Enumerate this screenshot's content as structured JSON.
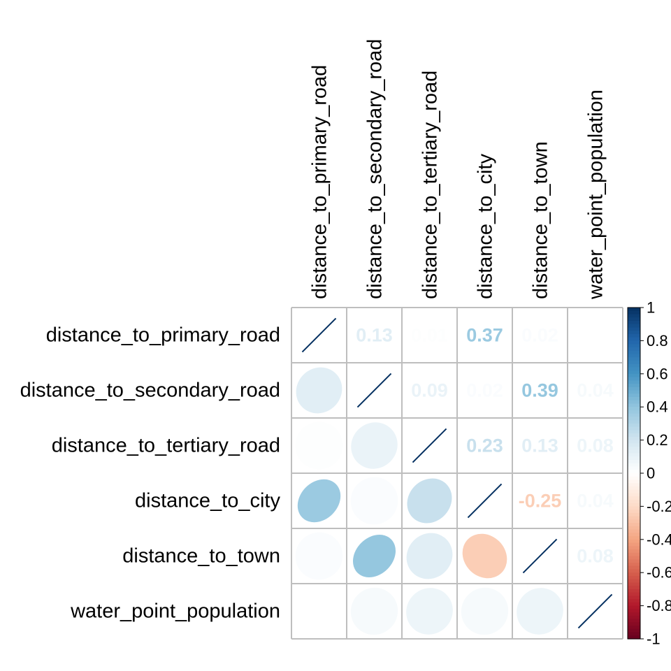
{
  "chart_data": {
    "type": "heatmap",
    "title": "",
    "variables": [
      "distance_to_primary_road",
      "distance_to_secondary_road",
      "distance_to_tertiary_road",
      "distance_to_city",
      "distance_to_town",
      "water_point_population"
    ],
    "correlation_matrix": [
      [
        1.0,
        0.13,
        0.01,
        0.37,
        0.02,
        0.0
      ],
      [
        0.13,
        1.0,
        0.09,
        0.02,
        0.39,
        0.04
      ],
      [
        0.01,
        0.09,
        1.0,
        0.23,
        0.13,
        0.08
      ],
      [
        0.37,
        0.02,
        0.23,
        1.0,
        -0.25,
        0.04
      ],
      [
        0.02,
        0.39,
        0.13,
        -0.25,
        1.0,
        0.08
      ],
      [
        0.0,
        0.04,
        0.08,
        0.04,
        0.08,
        1.0
      ]
    ],
    "display": {
      "lower_triangle": "ellipse",
      "upper_triangle": "number",
      "diagonal": "ellipse"
    },
    "colorbar": {
      "range": [
        -1,
        1
      ],
      "ticks": [
        "1",
        "0.8",
        "0.6",
        "0.4",
        "0.2",
        "0",
        "-0.2",
        "-0.4",
        "-0.6",
        "-0.8",
        "-1"
      ],
      "colors": {
        "negative_end": "#67001F",
        "mid": "#F7F7F7",
        "positive_end": "#053061"
      },
      "placement": "right"
    },
    "grid": true
  }
}
